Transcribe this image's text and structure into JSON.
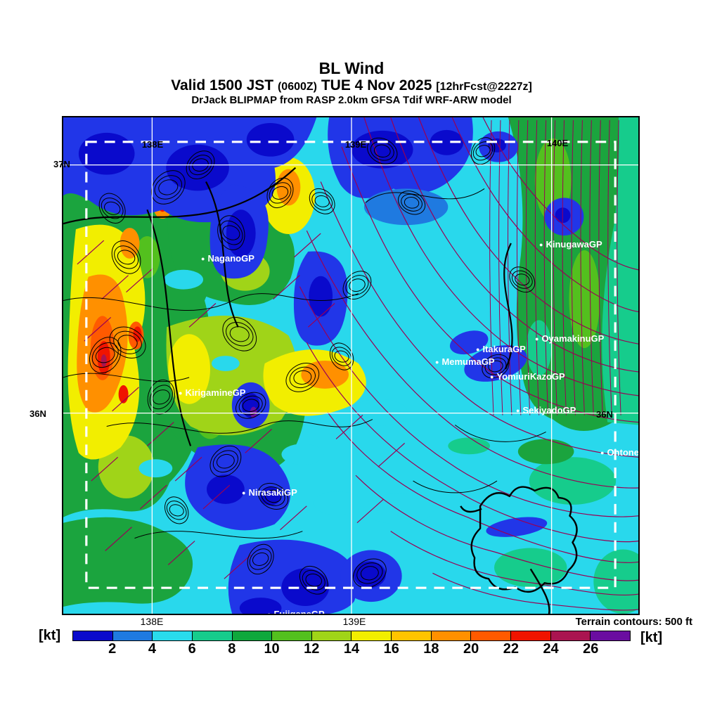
{
  "header": {
    "title": "BL Wind",
    "valid_prefix": "Valid 1500 JST",
    "valid_zulu": "(0600Z)",
    "valid_date": "TUE 4 Nov 2025",
    "valid_fcst": "[12hrFcst@2227z]",
    "model_line": "DrJack BLIPMAP from RASP 2.0km GFSA Tdif WRF-ARW model"
  },
  "map": {
    "grid_labels": {
      "meridian_138": "138E",
      "meridian_139": "139E",
      "meridian_140": "140E",
      "parallel_37_left": "37N",
      "parallel_36_left": "36N",
      "parallel_36_right": "36N"
    },
    "stations": [
      {
        "name": "NaganoGP"
      },
      {
        "name": "KirigamineGP"
      },
      {
        "name": "NirasakiGP"
      },
      {
        "name": "FujiganeGP"
      },
      {
        "name": "KinugawaGP"
      },
      {
        "name": "OyamakinuGP"
      },
      {
        "name": "ItakuraGP"
      },
      {
        "name": "MemumaGP"
      },
      {
        "name": "YomiuriKazoGP"
      },
      {
        "name": "SekiyadoGP"
      },
      {
        "name": "OhtoneGP"
      }
    ]
  },
  "footer": {
    "bottom_meridian_138": "138E",
    "bottom_meridian_139": "139E",
    "terrain_note": "Terrain contours: 500 ft",
    "unit_left": "[kt]",
    "unit_right": "[kt]"
  },
  "chart_data": {
    "type": "heatmap",
    "title": "BL Wind",
    "subtitle": "Valid 1500 JST (0600Z) TUE 4 Nov 2025 [12hrFcst@2227z]",
    "source": "DrJack BLIPMAP from RASP 2.0km GFSA Tdif WRF-ARW model",
    "units": "kt",
    "terrain_contour_interval_ft": 500,
    "grid": {
      "meridians": [
        "138E",
        "139E",
        "140E"
      ],
      "parallels": [
        "36N",
        "37N"
      ]
    },
    "colorbar": {
      "unit": "[kt]",
      "ticks": [
        2,
        4,
        6,
        8,
        10,
        12,
        14,
        16,
        18,
        20,
        22,
        24,
        26
      ],
      "colors": [
        "#0a0acc",
        "#1f7ae0",
        "#29dcec",
        "#16cc8c",
        "#0fa83c",
        "#53c01e",
        "#a0d418",
        "#f2ee00",
        "#ffc400",
        "#ff9000",
        "#ff5a00",
        "#f01400",
        "#aa1450",
        "#6a0da0"
      ]
    }
  }
}
